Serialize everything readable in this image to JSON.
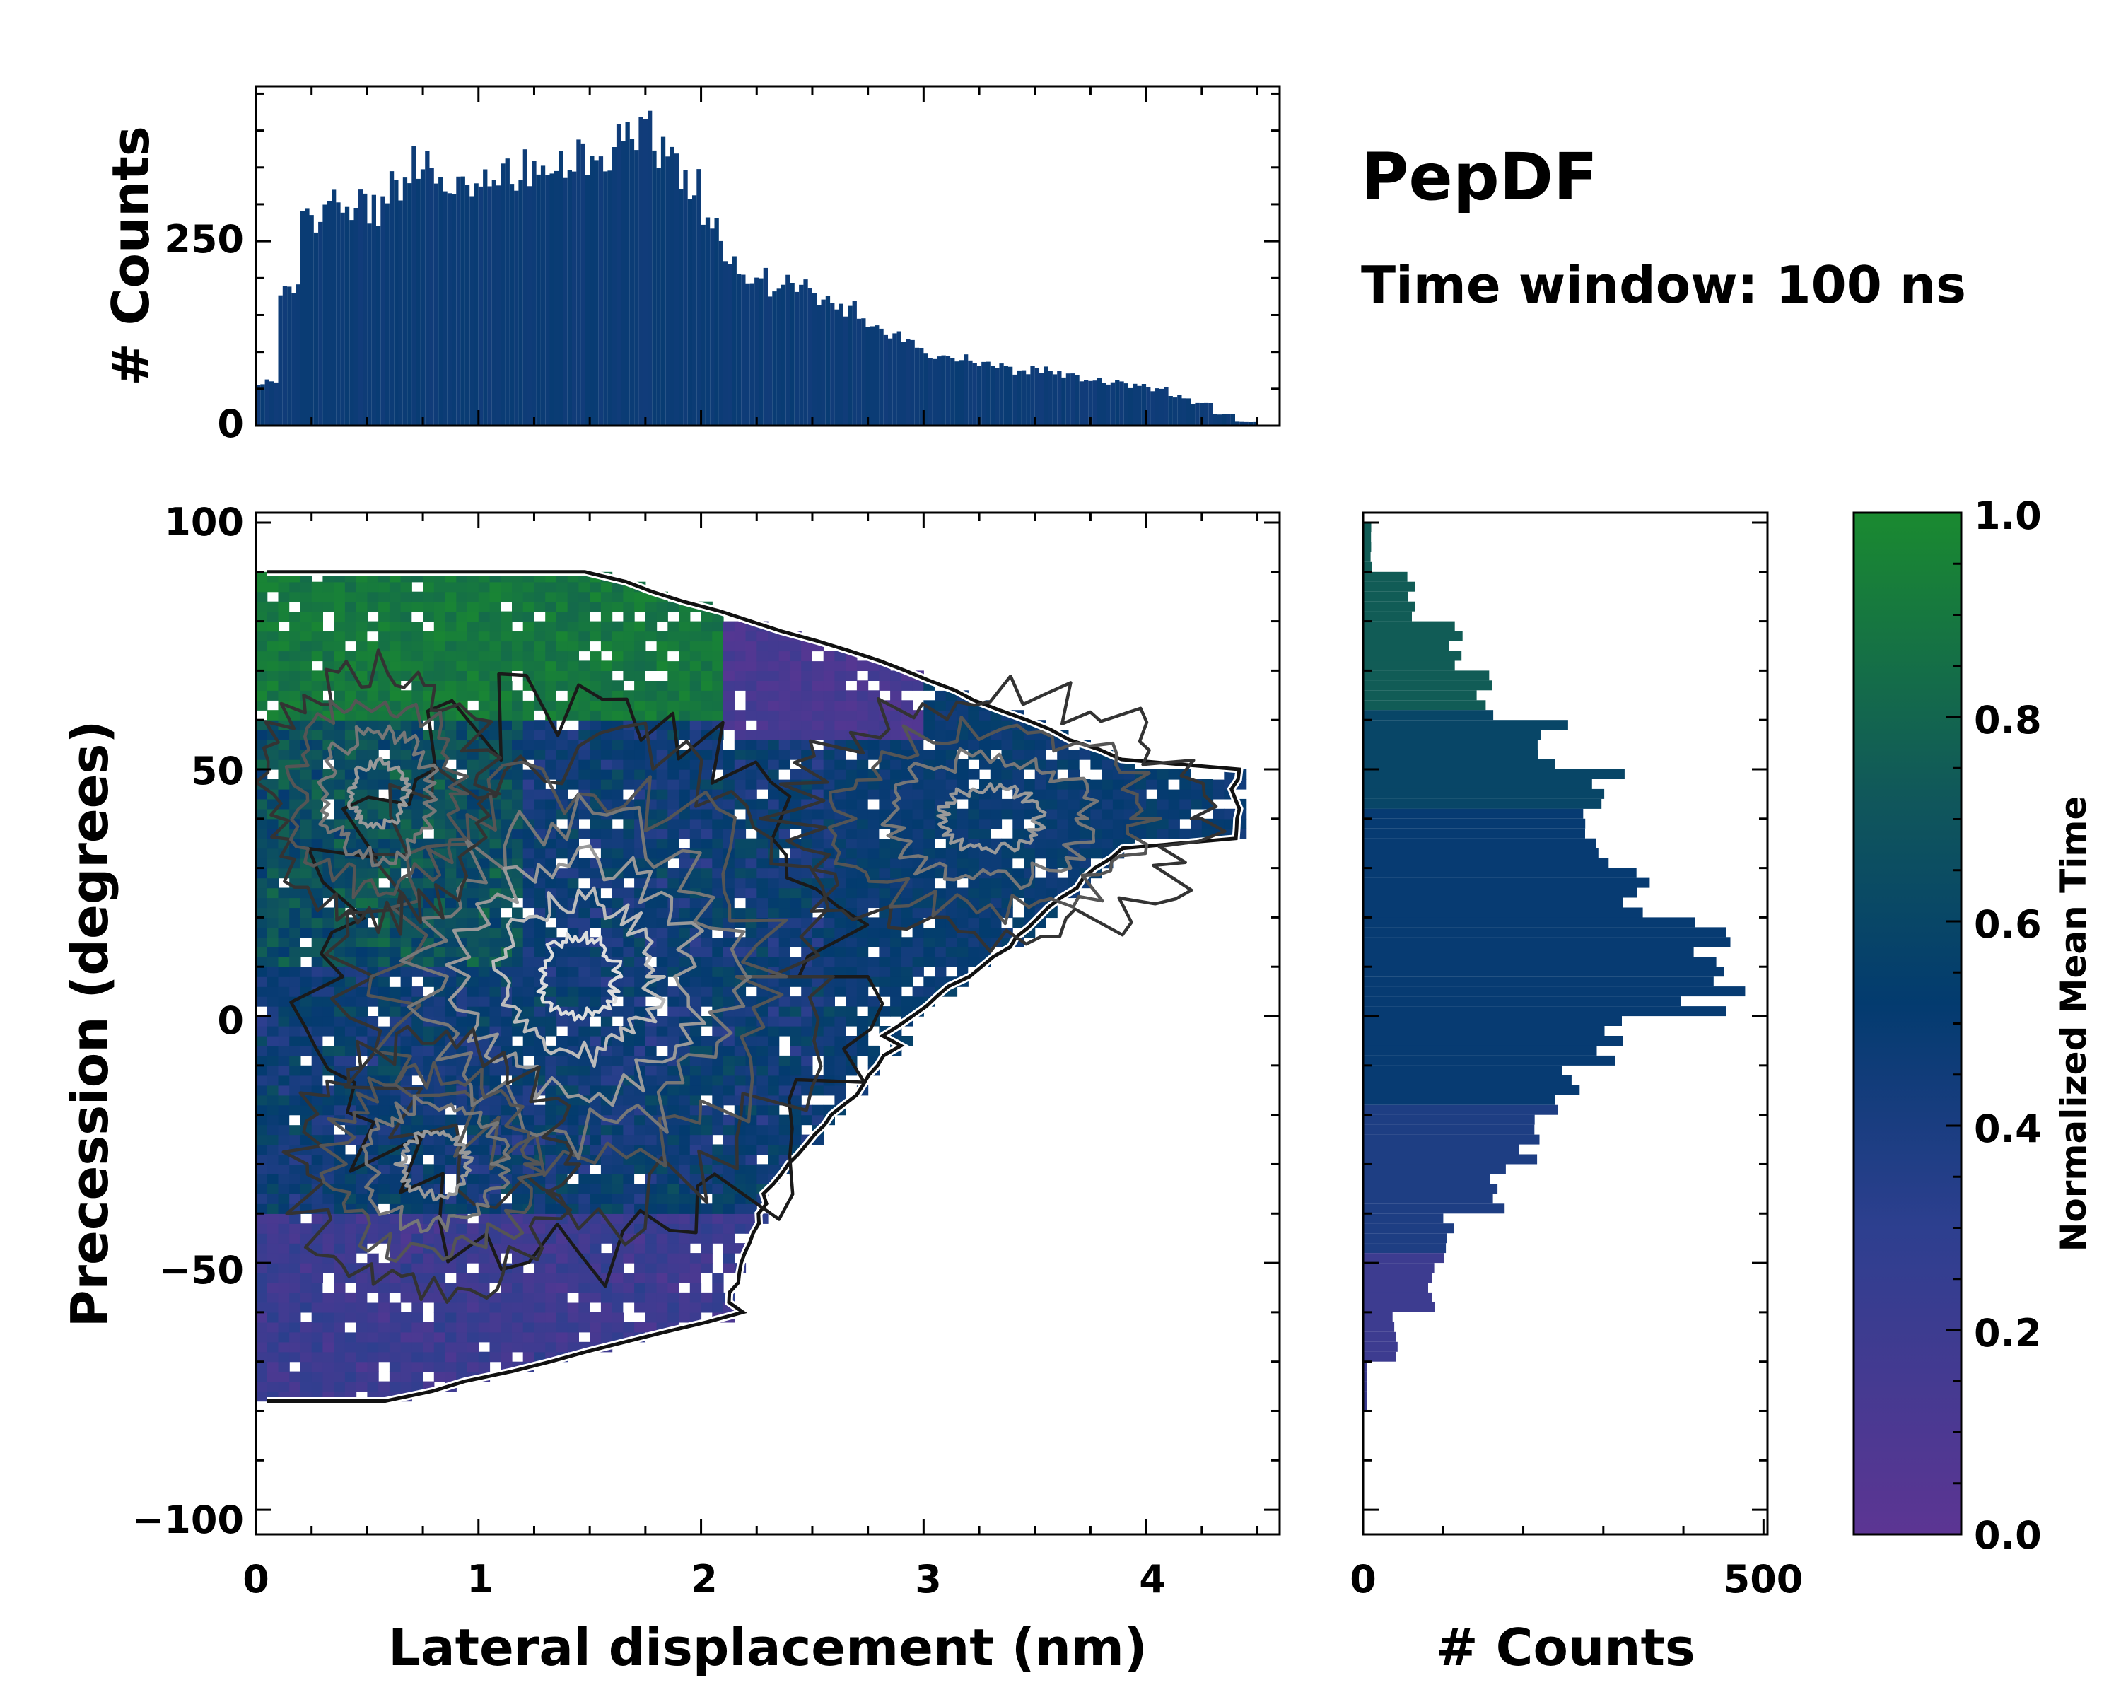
{
  "chart_data": {
    "type": "heatmap",
    "title": "PepDF",
    "subtitle": "Time window: 100 ns",
    "main_panel": {
      "xlabel": "Lateral displacement (nm)",
      "ylabel": "Precession (degrees)",
      "xlim": [
        0,
        4.6
      ],
      "ylim": [
        -105,
        102
      ],
      "xticks": [
        "0",
        "1",
        "2",
        "3",
        "4"
      ],
      "yticks": [
        "−100",
        "−50",
        "0",
        "50",
        "100"
      ],
      "color_by": "Normalized Mean Time",
      "contours": true
    },
    "top_histogram": {
      "type": "bar",
      "ylabel": "# Counts",
      "ylim": [
        0,
        460
      ],
      "yticks": [
        "0",
        "250"
      ],
      "x": [
        0.05,
        0.15,
        0.25,
        0.35,
        0.45,
        0.55,
        0.65,
        0.75,
        0.85,
        0.95,
        1.05,
        1.15,
        1.25,
        1.35,
        1.45,
        1.55,
        1.65,
        1.75,
        1.85,
        1.95,
        2.05,
        2.15,
        2.25,
        2.35,
        2.45,
        2.55,
        2.65,
        2.75,
        2.85,
        2.95,
        3.05,
        3.15,
        3.25,
        3.35,
        3.45,
        3.55,
        3.65,
        3.75,
        3.85,
        3.95,
        4.05,
        4.15,
        4.25,
        4.35,
        4.45
      ],
      "values": [
        60,
        180,
        280,
        310,
        300,
        290,
        330,
        360,
        340,
        330,
        335,
        340,
        350,
        355,
        360,
        370,
        385,
        400,
        370,
        330,
        270,
        220,
        200,
        190,
        185,
        175,
        160,
        145,
        125,
        110,
        95,
        90,
        85,
        80,
        75,
        75,
        70,
        65,
        60,
        55,
        50,
        40,
        30,
        15,
        5
      ]
    },
    "right_histogram": {
      "type": "bar",
      "orientation": "horizontal",
      "xlabel": "# Counts",
      "xlim": [
        0,
        505
      ],
      "xticks": [
        "0",
        "500"
      ],
      "y": [
        95,
        85,
        75,
        65,
        55,
        45,
        35,
        25,
        15,
        5,
        -5,
        -15,
        -25,
        -35,
        -45,
        -55,
        -65,
        -75
      ],
      "values": [
        10,
        60,
        115,
        155,
        235,
        300,
        280,
        350,
        430,
        440,
        300,
        250,
        205,
        170,
        110,
        85,
        40,
        5
      ]
    },
    "colorbar": {
      "label": "Normalized Mean Time",
      "range": [
        0,
        1
      ],
      "ticks": [
        "0.0",
        "0.2",
        "0.4",
        "0.6",
        "0.8",
        "1.0"
      ],
      "colors": [
        "#5c3593",
        "#2d3f8f",
        "#033b6f",
        "#10575b",
        "#1a8a30"
      ]
    }
  }
}
